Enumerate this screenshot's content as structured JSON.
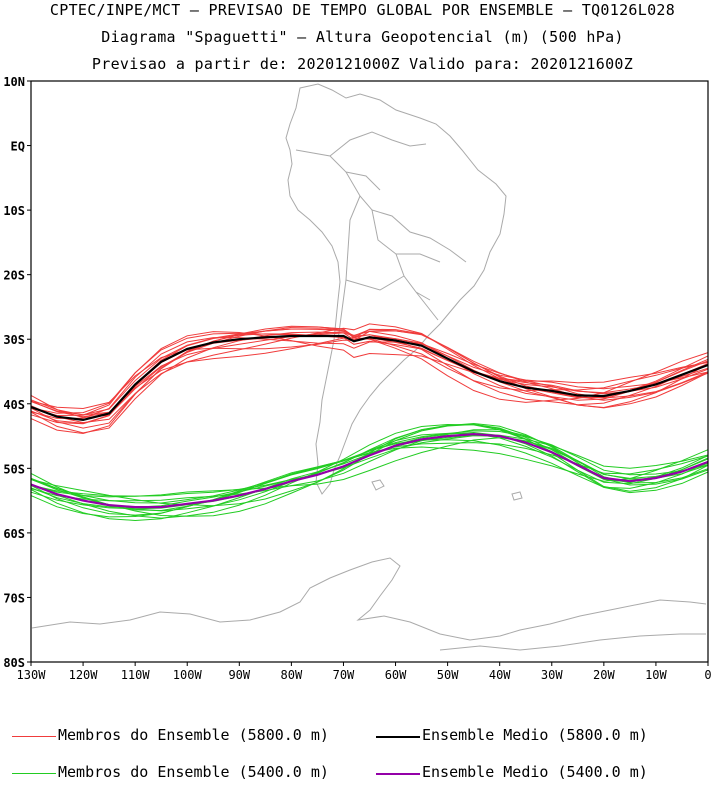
{
  "titles": {
    "line1": "CPTEC/INPE/MCT – PREVISAO DE TEMPO GLOBAL POR ENSEMBLE – TQ0126L028",
    "line2": "Diagrama \"Spaguetti\" – Altura Geopotencial (m) (500 hPa)",
    "line3": "Previsao a partir de: 2020121000Z  Valido para: 2020121600Z"
  },
  "axes": {
    "lat_labels": [
      "10N",
      "EQ",
      "10S",
      "20S",
      "30S",
      "40S",
      "50S",
      "60S",
      "70S",
      "80S"
    ],
    "lat_values": [
      10,
      0,
      -10,
      -20,
      -30,
      -40,
      -50,
      -60,
      -70,
      -80
    ],
    "lon_labels": [
      "130W",
      "120W",
      "110W",
      "100W",
      "90W",
      "80W",
      "70W",
      "60W",
      "50W",
      "40W",
      "30W",
      "20W",
      "10W",
      "0"
    ],
    "lon_values": [
      -130,
      -120,
      -110,
      -100,
      -90,
      -80,
      -70,
      -60,
      -50,
      -40,
      -30,
      -20,
      -10,
      0
    ],
    "lon_range": [
      -130,
      0
    ],
    "lat_range": [
      -80,
      10
    ]
  },
  "colors": {
    "members_5800": "#f03c3c",
    "mean_5800": "#000000",
    "members_5400": "#22cc22",
    "mean_5400": "#9400a8",
    "coast": "#aaaaaa"
  },
  "legend": [
    {
      "label": "Membros do Ensemble (5800.0 m)",
      "color": "#f03c3c"
    },
    {
      "label": "Ensemble Medio (5800.0 m)",
      "color": "#000000"
    },
    {
      "label": "Membros do Ensemble (5400.0 m)",
      "color": "#22cc22"
    },
    {
      "label": "Ensemble Medio (5400.0 m)",
      "color": "#9400a8"
    }
  ],
  "chart_data": {
    "type": "line",
    "map_projection": "lat-lon",
    "series": [
      {
        "name": "Ensemble Medio (5800.0 m)",
        "lon": [
          -130,
          -125,
          -120,
          -115,
          -110,
          -105,
          -100,
          -95,
          -90,
          -85,
          -80,
          -75,
          -70,
          -68,
          -65,
          -60,
          -55,
          -50,
          -45,
          -40,
          -35,
          -30,
          -25,
          -20,
          -15,
          -10,
          -5,
          0
        ],
        "lat": [
          -40.5,
          -42,
          -42.5,
          -41.5,
          -37,
          -33.5,
          -31.5,
          -30.5,
          -30,
          -29.7,
          -29.5,
          -29.5,
          -29.5,
          -30.3,
          -29.7,
          -30.2,
          -31,
          -33,
          -35,
          -36.5,
          -37.5,
          -38,
          -38.7,
          -38.8,
          -38,
          -37,
          -35.5,
          -34
        ]
      },
      {
        "name": "Ensemble Medio (5400.0 m)",
        "lon": [
          -130,
          -125,
          -120,
          -115,
          -110,
          -105,
          -100,
          -95,
          -90,
          -85,
          -80,
          -75,
          -70,
          -65,
          -60,
          -55,
          -50,
          -45,
          -40,
          -35,
          -30,
          -25,
          -20,
          -15,
          -10,
          -5,
          0
        ],
        "lat": [
          -52.5,
          -54,
          -55,
          -55.7,
          -56,
          -56,
          -55.5,
          -55,
          -54.2,
          -53.2,
          -52,
          -51,
          -49.7,
          -48,
          -46.5,
          -45.5,
          -45,
          -44.7,
          -45,
          -46,
          -47.5,
          -49.5,
          -51.5,
          -52,
          -51.5,
          -50.5,
          -49
        ]
      }
    ]
  }
}
